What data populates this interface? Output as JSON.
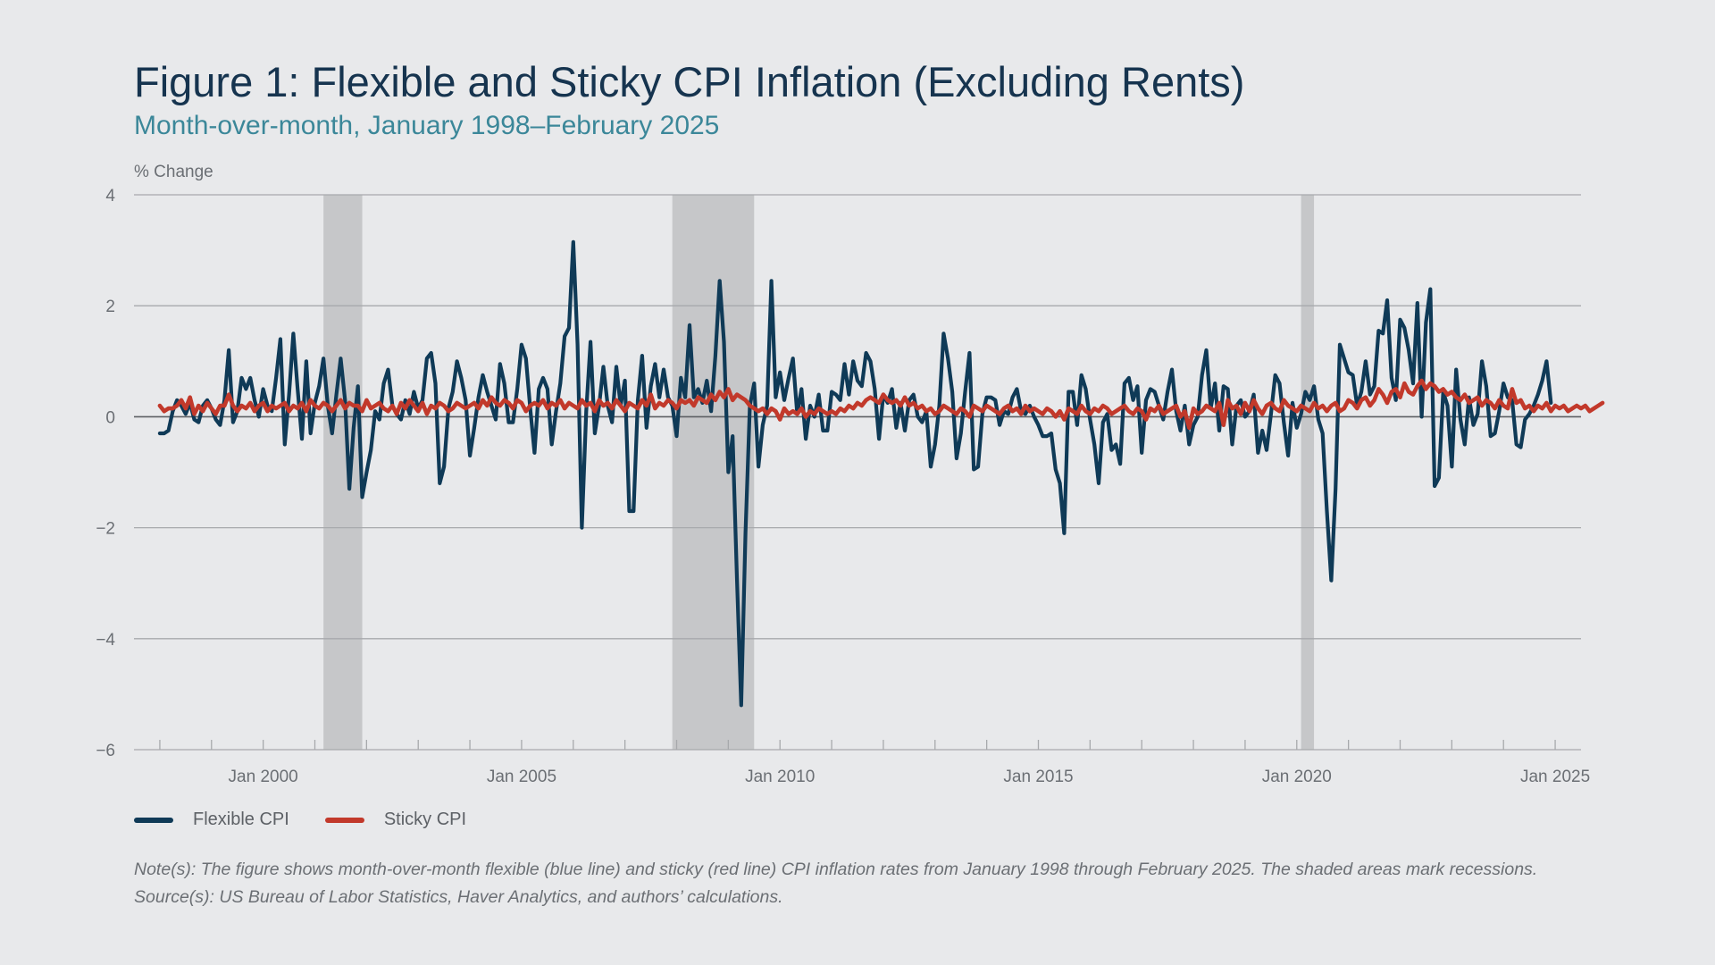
{
  "header": {
    "title": "Figure 1: Flexible and Sticky CPI Inflation (Excluding Rents)",
    "subtitle": "Month-over-month, January 1998–February 2025"
  },
  "notes": {
    "note": "Note(s): The figure shows month-over-month flexible (blue line) and sticky (red line) CPI inflation rates from January 1998 through February 2025. The shaded areas mark recessions.",
    "source": "Source(s): US Bureau of Labor Statistics, Haver Analytics, and authors’ calculations."
  },
  "colors": {
    "flexible": "#0f3a57",
    "sticky": "#c2392b",
    "recession": "#c6c7c9",
    "grid": "#a7a9ac",
    "zero": "#5c5f63"
  },
  "chart_data": {
    "type": "line",
    "ylabel": "% Change",
    "ylim": [
      -6,
      4
    ],
    "yticks": [
      4,
      2,
      0,
      -2,
      -4,
      -6
    ],
    "ytick_labels": [
      "4",
      "2",
      "0",
      "−2",
      "−4",
      "−6"
    ],
    "xlim": [
      "1997-07",
      "2025-07"
    ],
    "xticks": [
      "2000-01",
      "2005-01",
      "2010-01",
      "2015-01",
      "2020-01",
      "2025-01"
    ],
    "xtick_labels": [
      "Jan 2000",
      "Jan 2005",
      "Jan 2010",
      "Jan 2015",
      "Jan 2020",
      "Jan 2025"
    ],
    "x_start": "1998-01",
    "x_frequency": "monthly",
    "grid": true,
    "legend_placement": "bottom-left",
    "recessions": [
      {
        "start": "2001-03",
        "end": "2001-11"
      },
      {
        "start": "2007-12",
        "end": "2009-06"
      },
      {
        "start": "2020-02",
        "end": "2020-04"
      }
    ],
    "series": [
      {
        "name": "Flexible CPI",
        "values": [
          -0.3,
          -0.3,
          -0.25,
          0.1,
          0.3,
          0.2,
          0.05,
          0.25,
          -0.05,
          -0.1,
          0.2,
          0.3,
          0.15,
          -0.05,
          -0.15,
          0.3,
          1.2,
          -0.1,
          0.1,
          0.7,
          0.5,
          0.7,
          0.3,
          0.0,
          0.5,
          0.2,
          0.1,
          0.7,
          1.4,
          -0.5,
          0.4,
          1.5,
          0.5,
          -0.4,
          1.0,
          -0.3,
          0.25,
          0.55,
          1.05,
          0.2,
          -0.3,
          0.4,
          1.05,
          0.3,
          -1.3,
          -0.2,
          0.55,
          -1.45,
          -1.0,
          -0.6,
          0.1,
          -0.05,
          0.6,
          0.85,
          0.2,
          0.05,
          -0.05,
          0.3,
          0.05,
          0.45,
          0.15,
          0.3,
          1.05,
          1.15,
          0.6,
          -1.2,
          -0.9,
          0.15,
          0.45,
          1.0,
          0.7,
          0.3,
          -0.7,
          -0.2,
          0.35,
          0.75,
          0.45,
          0.2,
          -0.05,
          0.95,
          0.6,
          -0.1,
          -0.1,
          0.5,
          1.3,
          1.05,
          0.15,
          -0.65,
          0.5,
          0.7,
          0.5,
          -0.5,
          0.1,
          0.6,
          1.45,
          1.6,
          3.15,
          1.3,
          -2.0,
          0.1,
          1.35,
          -0.3,
          0.2,
          0.9,
          0.2,
          -0.1,
          0.9,
          0.2,
          0.65,
          -1.7,
          -1.7,
          0.3,
          1.1,
          -0.2,
          0.55,
          0.95,
          0.35,
          0.85,
          0.35,
          0.2,
          -0.35,
          0.7,
          0.35,
          1.65,
          0.35,
          0.5,
          0.25,
          0.65,
          0.1,
          1.1,
          2.45,
          1.35,
          -1.0,
          -0.35,
          -2.9,
          -5.2,
          -2.1,
          0.2,
          0.6,
          -0.9,
          -0.15,
          0.2,
          2.45,
          0.35,
          0.8,
          0.3,
          0.7,
          1.05,
          0.05,
          0.5,
          -0.4,
          0.2,
          0.0,
          0.4,
          -0.25,
          -0.25,
          0.45,
          0.4,
          0.3,
          0.95,
          0.4,
          1.0,
          0.65,
          0.55,
          1.15,
          1.0,
          0.5,
          -0.4,
          0.4,
          0.25,
          0.5,
          -0.2,
          0.25,
          -0.25,
          0.3,
          0.4,
          0.0,
          -0.1,
          0.1,
          -0.9,
          -0.5,
          0.2,
          1.5,
          1.05,
          0.45,
          -0.75,
          -0.3,
          0.45,
          1.15,
          -0.95,
          -0.9,
          0.05,
          0.35,
          0.35,
          0.3,
          -0.15,
          0.1,
          0.05,
          0.35,
          0.5,
          0.1,
          0.05,
          0.2,
          0.0,
          -0.15,
          -0.35,
          -0.35,
          -0.3,
          -0.95,
          -1.2,
          -2.1,
          0.45,
          0.45,
          -0.15,
          0.75,
          0.5,
          -0.05,
          -0.5,
          -1.2,
          -0.1,
          0.05,
          -0.6,
          -0.5,
          -0.85,
          0.6,
          0.7,
          0.3,
          0.55,
          -0.65,
          0.3,
          0.5,
          0.45,
          0.2,
          -0.05,
          0.45,
          0.85,
          0.1,
          -0.25,
          0.2,
          -0.5,
          -0.15,
          0.0,
          0.75,
          1.2,
          0.15,
          0.6,
          -0.25,
          0.55,
          0.5,
          -0.5,
          0.2,
          0.3,
          0.0,
          0.1,
          0.4,
          -0.65,
          -0.25,
          -0.6,
          0.05,
          0.75,
          0.6,
          -0.1,
          -0.7,
          0.25,
          -0.2,
          0.05,
          0.45,
          0.3,
          0.55,
          -0.05,
          -0.3,
          -1.7,
          -2.95,
          -1.3,
          1.3,
          1.05,
          0.8,
          0.75,
          0.2,
          0.45,
          1.0,
          0.4,
          0.55,
          1.55,
          1.5,
          2.1,
          0.7,
          0.3,
          1.75,
          1.6,
          1.2,
          0.6,
          2.05,
          0.0,
          1.7,
          2.3,
          -1.25,
          -1.1,
          0.45,
          0.2,
          -0.9,
          0.85,
          -0.05,
          -0.5,
          0.35,
          -0.15,
          0.05,
          1.0,
          0.55,
          -0.35,
          -0.3,
          0.1,
          0.6,
          0.35,
          0.3,
          -0.5,
          -0.55,
          -0.05,
          0.05,
          0.2,
          0.4,
          0.65,
          1.0,
          0.25
        ]
      },
      {
        "name": "Sticky CPI",
        "values": [
          0.2,
          0.1,
          0.15,
          0.15,
          0.2,
          0.3,
          0.15,
          0.35,
          0.05,
          0.2,
          0.1,
          0.25,
          0.15,
          0.05,
          0.2,
          0.2,
          0.4,
          0.2,
          0.1,
          0.2,
          0.15,
          0.25,
          0.1,
          0.2,
          0.25,
          0.1,
          0.2,
          0.15,
          0.2,
          0.25,
          0.1,
          0.2,
          0.15,
          0.25,
          0.1,
          0.3,
          0.2,
          0.15,
          0.25,
          0.2,
          0.1,
          0.2,
          0.3,
          0.15,
          0.25,
          0.2,
          0.2,
          0.1,
          0.3,
          0.15,
          0.2,
          0.25,
          0.15,
          0.1,
          0.2,
          0.05,
          0.25,
          0.15,
          0.3,
          0.2,
          0.1,
          0.25,
          0.05,
          0.2,
          0.15,
          0.25,
          0.2,
          0.1,
          0.15,
          0.25,
          0.2,
          0.15,
          0.2,
          0.25,
          0.15,
          0.3,
          0.2,
          0.35,
          0.25,
          0.2,
          0.3,
          0.25,
          0.15,
          0.3,
          0.25,
          0.1,
          0.2,
          0.25,
          0.2,
          0.3,
          0.15,
          0.25,
          0.2,
          0.3,
          0.15,
          0.25,
          0.2,
          0.15,
          0.3,
          0.2,
          0.25,
          0.1,
          0.3,
          0.2,
          0.25,
          0.15,
          0.3,
          0.2,
          0.1,
          0.25,
          0.2,
          0.15,
          0.3,
          0.2,
          0.4,
          0.15,
          0.25,
          0.2,
          0.3,
          0.25,
          0.15,
          0.3,
          0.25,
          0.3,
          0.2,
          0.35,
          0.3,
          0.25,
          0.4,
          0.3,
          0.45,
          0.35,
          0.5,
          0.3,
          0.4,
          0.35,
          0.3,
          0.2,
          0.15,
          0.1,
          0.15,
          0.05,
          0.15,
          0.1,
          -0.05,
          0.15,
          0.05,
          0.1,
          0.05,
          0.15,
          0.0,
          0.1,
          0.05,
          0.15,
          0.1,
          0.05,
          0.1,
          0.05,
          0.15,
          0.1,
          0.2,
          0.15,
          0.25,
          0.2,
          0.3,
          0.35,
          0.3,
          0.25,
          0.4,
          0.3,
          0.25,
          0.3,
          0.2,
          0.35,
          0.2,
          0.25,
          0.15,
          0.2,
          0.1,
          0.15,
          0.05,
          0.1,
          0.2,
          0.15,
          0.1,
          0.05,
          0.15,
          0.1,
          0.0,
          0.2,
          0.15,
          0.1,
          0.2,
          0.15,
          0.1,
          0.05,
          0.15,
          0.2,
          0.1,
          0.15,
          0.05,
          0.2,
          0.1,
          0.15,
          0.1,
          0.05,
          0.15,
          0.1,
          0.0,
          0.1,
          -0.05,
          0.15,
          0.1,
          0.05,
          0.2,
          0.1,
          0.05,
          0.15,
          0.1,
          0.2,
          0.15,
          0.05,
          0.1,
          0.15,
          0.2,
          0.1,
          0.05,
          0.15,
          0.1,
          -0.05,
          0.15,
          0.1,
          0.2,
          0.05,
          0.1,
          0.15,
          0.2,
          0.0,
          0.1,
          -0.2,
          0.15,
          0.05,
          0.1,
          0.2,
          0.15,
          0.1,
          0.25,
          -0.15,
          0.3,
          0.15,
          0.2,
          0.05,
          0.25,
          0.1,
          0.3,
          0.15,
          0.05,
          0.2,
          0.25,
          0.15,
          0.1,
          0.3,
          0.2,
          0.15,
          0.1,
          0.2,
          0.15,
          0.1,
          0.25,
          0.15,
          0.2,
          0.1,
          0.2,
          0.25,
          0.1,
          0.15,
          0.3,
          0.25,
          0.15,
          0.3,
          0.35,
          0.2,
          0.3,
          0.5,
          0.4,
          0.25,
          0.45,
          0.5,
          0.35,
          0.6,
          0.45,
          0.4,
          0.55,
          0.65,
          0.5,
          0.6,
          0.55,
          0.45,
          0.5,
          0.4,
          0.45,
          0.35,
          0.3,
          0.4,
          0.25,
          0.3,
          0.35,
          0.2,
          0.3,
          0.25,
          0.15,
          0.3,
          0.2,
          0.15,
          0.5,
          0.25,
          0.3,
          0.15,
          0.2,
          0.1,
          0.2,
          0.15,
          0.25,
          0.1,
          0.2,
          0.15,
          0.2,
          0.1,
          0.15,
          0.2,
          0.15,
          0.2,
          0.1,
          0.15,
          0.2,
          0.25
        ]
      }
    ]
  }
}
